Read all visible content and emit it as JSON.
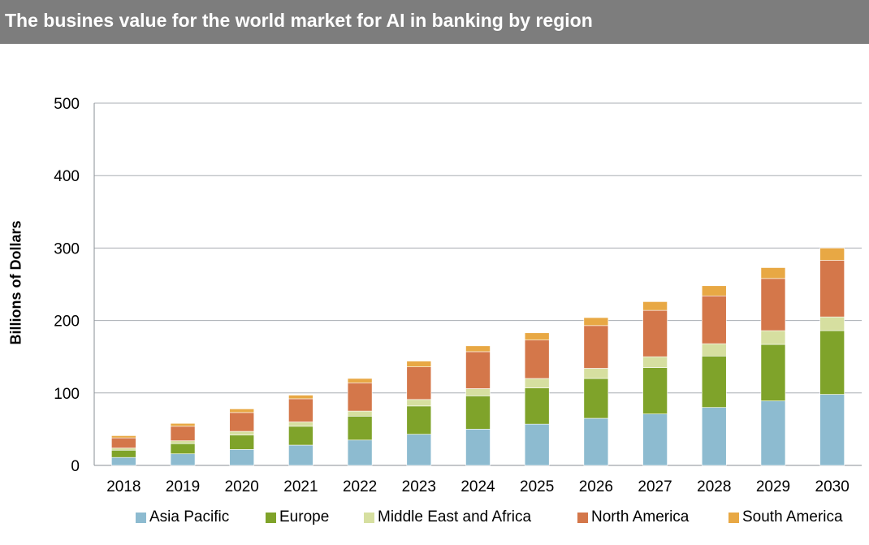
{
  "header": {
    "title": "The busines value for the world market for AI in banking by region"
  },
  "chart_data": {
    "type": "bar",
    "stacked": true,
    "title": "The busines value for the world market for AI in banking by region",
    "xlabel": "",
    "ylabel": "Billions of Dollars",
    "ylim": [
      0,
      500
    ],
    "yticks": [
      0,
      100,
      200,
      300,
      400,
      500
    ],
    "grid": true,
    "legend_position": "bottom",
    "categories": [
      "2018",
      "2019",
      "2020",
      "2021",
      "2022",
      "2023",
      "2024",
      "2025",
      "2026",
      "2027",
      "2028",
      "2029",
      "2030"
    ],
    "series": [
      {
        "name": "Asia Pacific",
        "color": "#8dbbd0",
        "values": [
          11,
          16,
          22,
          28,
          35,
          43,
          50,
          57,
          65,
          71,
          80,
          89,
          98
        ]
      },
      {
        "name": "Europe",
        "color": "#7fa32a",
        "values": [
          10,
          14,
          20,
          26,
          33,
          39,
          46,
          50,
          55,
          64,
          71,
          78,
          88
        ]
      },
      {
        "name": "Middle East and Africa",
        "color": "#d6dfa0",
        "values": [
          3,
          4,
          5,
          6,
          7,
          9,
          10,
          13,
          14,
          15,
          17,
          19,
          19
        ]
      },
      {
        "name": "North America",
        "color": "#d4774a",
        "values": [
          14,
          20,
          26,
          32,
          39,
          45,
          51,
          53,
          59,
          64,
          66,
          72,
          78
        ]
      },
      {
        "name": "South America",
        "color": "#e8a844",
        "values": [
          3,
          4,
          5,
          5,
          6,
          8,
          8,
          10,
          11,
          12,
          14,
          15,
          17
        ]
      }
    ]
  }
}
